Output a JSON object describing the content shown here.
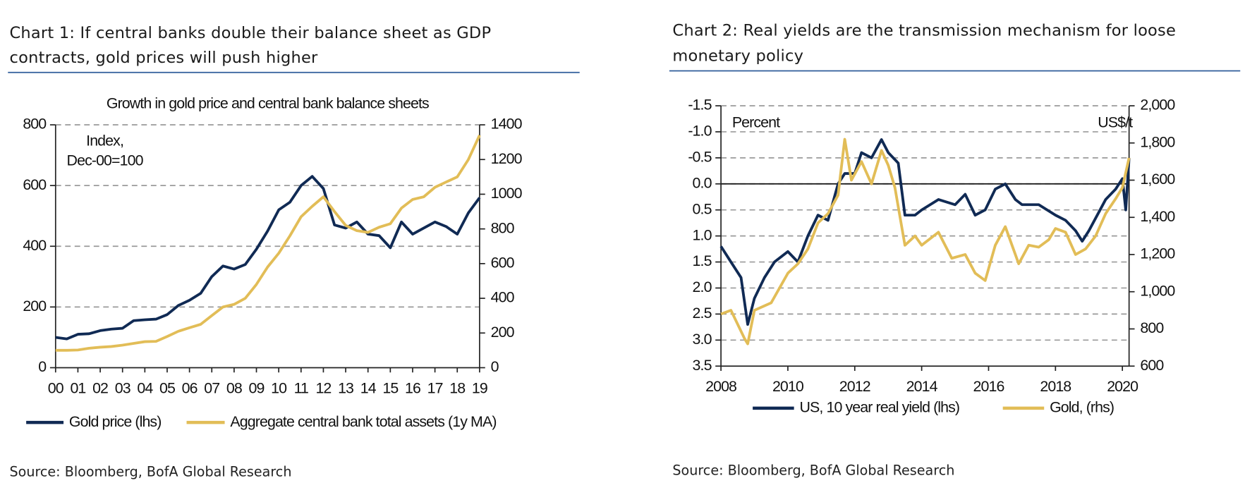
{
  "chart_data": [
    {
      "type": "line",
      "heading": [
        "Chart 1: If central banks double their balance sheet as GDP",
        "contracts, gold prices will push higher"
      ],
      "title": "Growth in gold price and central bank balance sheets",
      "annotations": [
        "Index,",
        "Dec-00=100"
      ],
      "x": [
        0,
        0.5,
        1,
        1.5,
        2,
        2.5,
        3,
        3.5,
        4,
        4.5,
        5,
        5.5,
        6,
        6.5,
        7,
        7.5,
        8,
        8.5,
        9,
        9.5,
        10,
        10.5,
        11,
        11.5,
        12,
        12.5,
        13,
        13.5,
        14,
        14.5,
        15,
        15.5,
        16,
        16.5,
        17,
        17.5,
        18,
        18.5,
        19
      ],
      "xlim": [
        0,
        19
      ],
      "xticks": [
        {
          "value": 0,
          "label": "00"
        },
        {
          "value": 1,
          "label": "01"
        },
        {
          "value": 2,
          "label": "02"
        },
        {
          "value": 3,
          "label": "03"
        },
        {
          "value": 4,
          "label": "04"
        },
        {
          "value": 5,
          "label": "05"
        },
        {
          "value": 6,
          "label": "06"
        },
        {
          "value": 7,
          "label": "07"
        },
        {
          "value": 8,
          "label": "08"
        },
        {
          "value": 9,
          "label": "09"
        },
        10,
        11,
        12,
        13,
        14,
        15,
        16,
        17,
        18,
        19
      ],
      "ylim": [
        0,
        800
      ],
      "yticks": [
        0,
        200,
        400,
        600,
        800
      ],
      "y2lim": [
        0,
        1400
      ],
      "y2ticks": [
        0,
        200,
        400,
        600,
        800,
        1000,
        1200,
        1400
      ],
      "grid": true,
      "legend": "bottom",
      "series": [
        {
          "name": "Gold price (lhs)",
          "color": "#102a54",
          "axis": "y",
          "values": [
            100,
            95,
            110,
            112,
            122,
            127,
            130,
            155,
            158,
            160,
            175,
            205,
            222,
            245,
            300,
            335,
            325,
            340,
            390,
            450,
            520,
            545,
            600,
            630,
            590,
            470,
            460,
            480,
            440,
            435,
            395,
            480,
            440,
            460,
            480,
            465,
            440,
            510,
            560
          ]
        },
        {
          "name": "Aggregate central bank total assets (1y MA)",
          "color": "#e2bd57",
          "axis": "y2",
          "values": [
            100,
            100,
            102,
            112,
            118,
            122,
            130,
            140,
            150,
            152,
            180,
            210,
            230,
            250,
            300,
            350,
            365,
            400,
            480,
            580,
            660,
            760,
            870,
            930,
            985,
            900,
            820,
            790,
            780,
            810,
            830,
            920,
            970,
            985,
            1040,
            1070,
            1100,
            1200,
            1340
          ]
        }
      ],
      "source": "Source: Bloomberg, BofA Global Research"
    },
    {
      "type": "line",
      "heading": [
        "Chart 2: Real yields are the transmission mechanism for loose",
        "monetary policy"
      ],
      "annotations": [
        "Percent",
        "US$/t"
      ],
      "xlim": [
        2008,
        2020.2
      ],
      "xticks": [
        2008,
        2010,
        2012,
        2014,
        2016,
        2018,
        2020
      ],
      "ylim": [
        -1.5,
        3.5
      ],
      "y_inverted": true,
      "yticks": [
        {
          "value": -1.5,
          "label": "-1.5"
        },
        {
          "value": -1,
          "label": "-1.0"
        },
        {
          "value": -0.5,
          "label": "-0.5"
        },
        {
          "value": 0,
          "label": "0.0"
        },
        0.5,
        {
          "value": 1,
          "label": "1.0"
        },
        1.5,
        {
          "value": 2,
          "label": "2.0"
        },
        2.5,
        {
          "value": 3,
          "label": "3.0"
        },
        3.5
      ],
      "negative_tick_color": "#e00000",
      "y2lim": [
        600,
        2000
      ],
      "y2ticks": [
        {
          "value": 2000,
          "label": "2,000"
        },
        {
          "value": 1800,
          "label": "1,800"
        },
        {
          "value": 1600,
          "label": "1,600"
        },
        {
          "value": 1400,
          "label": "1,400"
        },
        {
          "value": 1200,
          "label": "1,200"
        },
        {
          "value": 1000,
          "label": "1,000"
        },
        800,
        600
      ],
      "grid": true,
      "zero_line": true,
      "legend": "bottom",
      "series": [
        {
          "name": "US, 10 year real yield (lhs)",
          "color": "#102a54",
          "axis": "y",
          "x": [
            2008,
            2008.3,
            2008.6,
            2008.8,
            2009,
            2009.3,
            2009.6,
            2010,
            2010.3,
            2010.6,
            2010.9,
            2011.2,
            2011.5,
            2011.7,
            2012,
            2012.2,
            2012.5,
            2012.8,
            2013,
            2013.3,
            2013.5,
            2013.8,
            2014,
            2014.5,
            2015,
            2015.3,
            2015.6,
            2015.9,
            2016.2,
            2016.5,
            2016.8,
            2017,
            2017.5,
            2018,
            2018.3,
            2018.6,
            2018.8,
            2019,
            2019.5,
            2019.8,
            2020,
            2020.1,
            2020.2
          ],
          "values": [
            1.2,
            1.5,
            1.8,
            2.7,
            2.2,
            1.8,
            1.5,
            1.3,
            1.5,
            1.0,
            0.6,
            0.7,
            0.0,
            -0.2,
            -0.2,
            -0.6,
            -0.5,
            -0.85,
            -0.6,
            -0.4,
            0.6,
            0.6,
            0.5,
            0.3,
            0.4,
            0.2,
            0.6,
            0.5,
            0.1,
            0.0,
            0.3,
            0.4,
            0.4,
            0.6,
            0.7,
            0.9,
            1.1,
            0.9,
            0.3,
            0.1,
            -0.1,
            0.5,
            -0.5
          ]
        },
        {
          "name": "Gold, (rhs)",
          "color": "#e2bd57",
          "axis": "y2",
          "x": [
            2008,
            2008.3,
            2008.7,
            2008.8,
            2009,
            2009.5,
            2010,
            2010.3,
            2010.6,
            2010.9,
            2011.2,
            2011.5,
            2011.7,
            2011.9,
            2012.2,
            2012.5,
            2012.8,
            2013,
            2013.2,
            2013.5,
            2013.8,
            2014,
            2014.5,
            2014.9,
            2015.3,
            2015.6,
            2015.9,
            2016.2,
            2016.5,
            2016.9,
            2017.2,
            2017.5,
            2017.8,
            2018,
            2018.3,
            2018.6,
            2018.9,
            2019.2,
            2019.5,
            2019.8,
            2020,
            2020.2
          ],
          "values": [
            880,
            900,
            750,
            720,
            900,
            940,
            1100,
            1150,
            1230,
            1370,
            1420,
            1520,
            1820,
            1600,
            1700,
            1580,
            1760,
            1680,
            1560,
            1250,
            1300,
            1250,
            1320,
            1180,
            1200,
            1100,
            1060,
            1250,
            1350,
            1150,
            1250,
            1240,
            1280,
            1340,
            1320,
            1200,
            1230,
            1300,
            1420,
            1500,
            1560,
            1720
          ]
        }
      ],
      "source": "Source: Bloomberg, BofA Global Research"
    }
  ]
}
